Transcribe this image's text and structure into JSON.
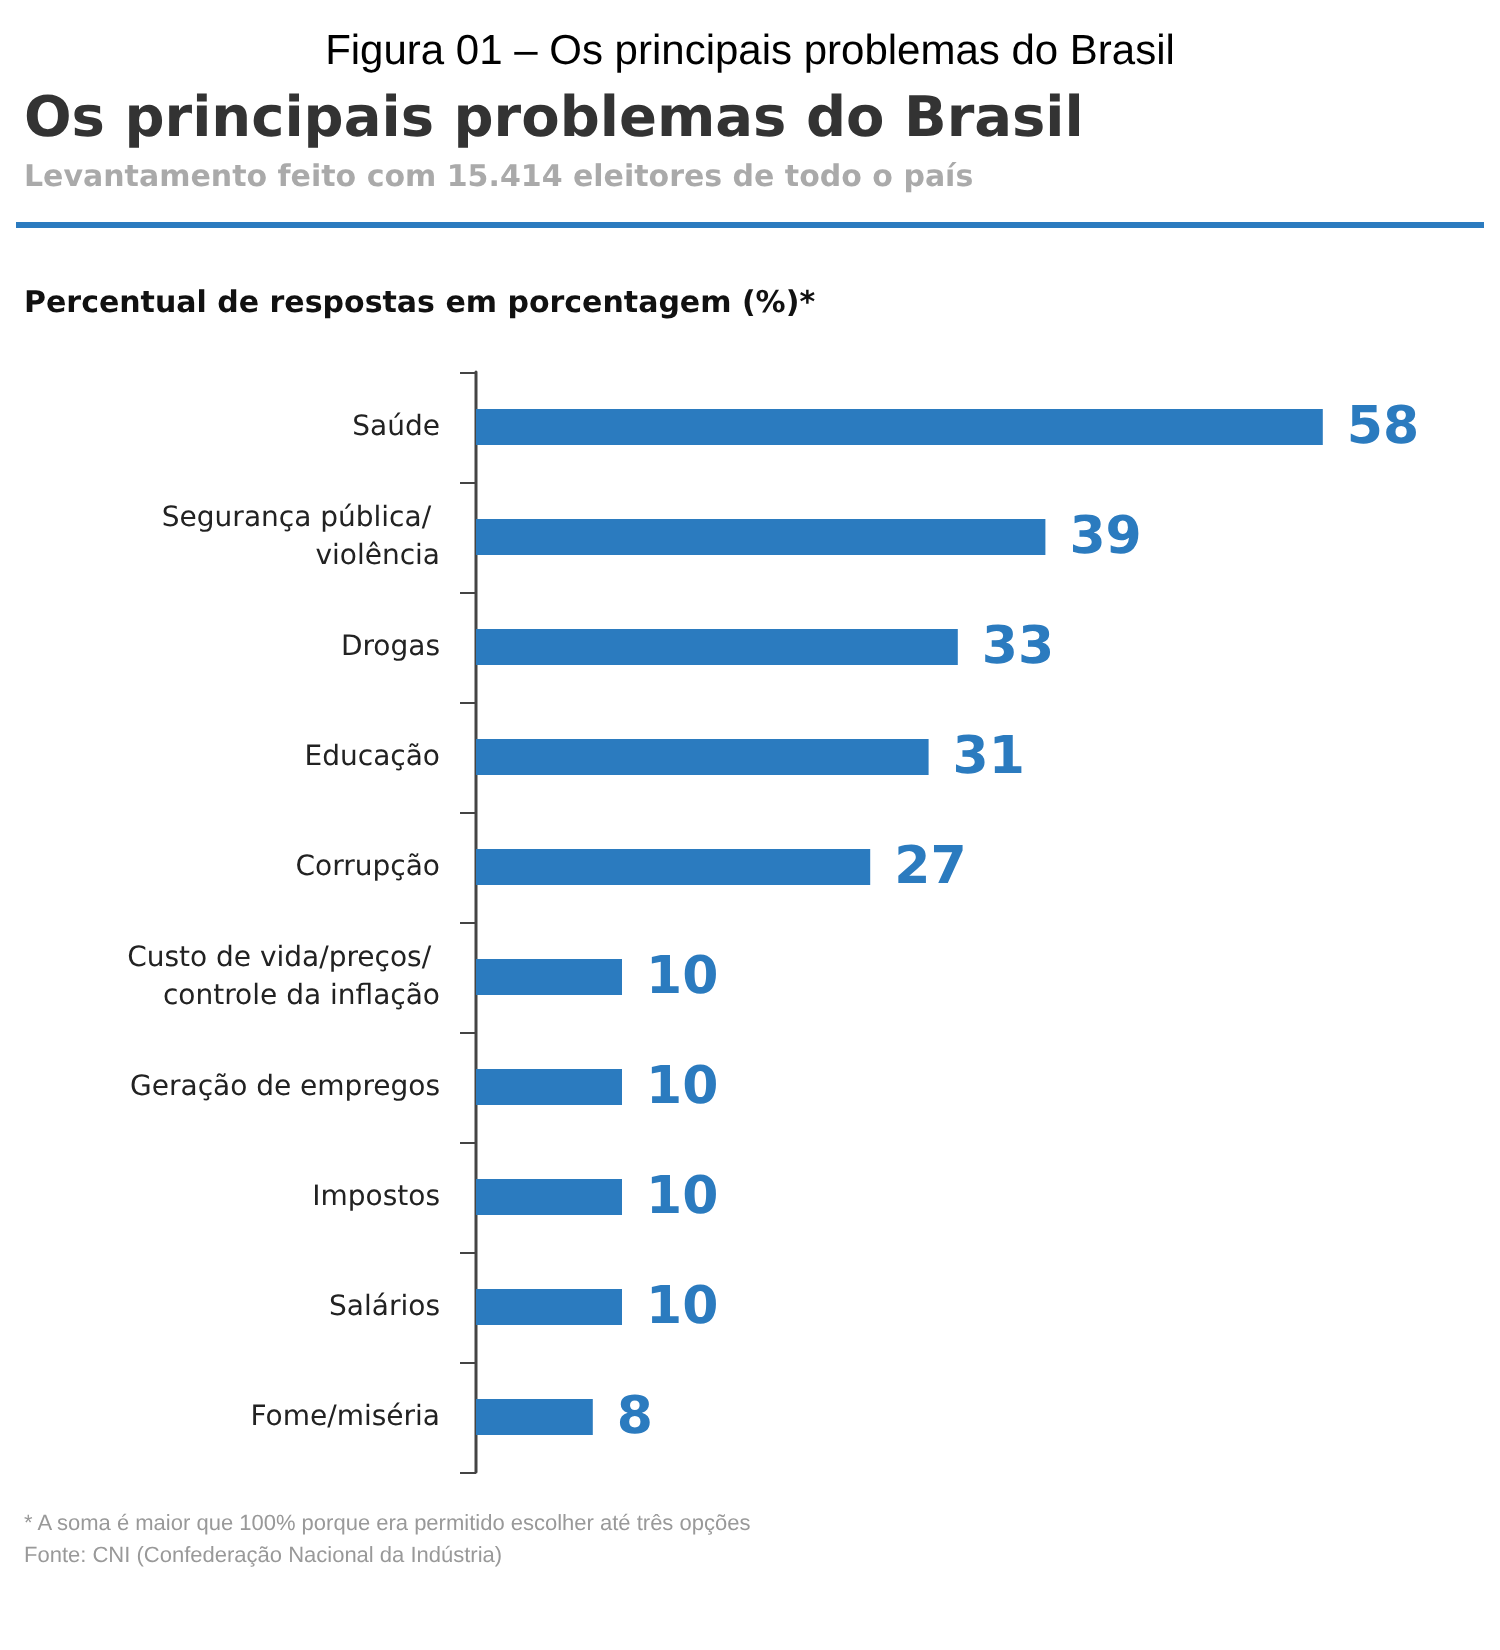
{
  "chart_data": {
    "type": "bar",
    "orientation": "horizontal",
    "title": "Os principais problemas do Brasil",
    "subtitle": "Levantamento feito com 15.414 eleitores de todo o país",
    "xlabel": "Percentual de respostas em porcentagem (%)*",
    "categories": [
      "Saúde",
      "Segurança pública/ violência",
      "Drogas",
      "Educação",
      "Corrupção",
      "Custo de vida/preços/ controle da inflação",
      "Geração de empregos",
      "Impostos",
      "Salários",
      "Fome/miséria"
    ],
    "values": [
      58,
      39,
      33,
      31,
      27,
      10,
      10,
      10,
      10,
      8
    ],
    "color": "#2b7bbf",
    "data_labels": true,
    "tick_labels": "y",
    "annotations": [
      "Figura 01 – Os principais problemas do Brasil",
      "* A soma é maior que 100% porque era permitido escolher até três opções",
      "Fonte: CNI (Confederação Nacional da Indústria)"
    ]
  }
}
